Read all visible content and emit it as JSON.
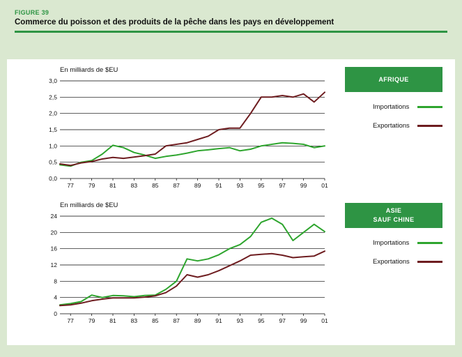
{
  "figure": {
    "label": "FIGURE 39",
    "title": "Commerce du poisson et des produits de la pêche dans les pays en développement"
  },
  "colors": {
    "background": "#dae8d0",
    "accent_green": "#2e9444",
    "panel": "#ffffff",
    "grid": "#000000",
    "import_line": "#2ea52e",
    "export_line": "#6e1d20"
  },
  "chart_data": [
    {
      "type": "line",
      "title": "AFRIQUE",
      "title_lines": [
        "AFRIQUE"
      ],
      "ylabel": "En milliards de $EU",
      "x": [
        1976,
        1977,
        1978,
        1979,
        1980,
        1981,
        1982,
        1983,
        1984,
        1985,
        1986,
        1987,
        1988,
        1989,
        1990,
        1991,
        1992,
        1993,
        1994,
        1995,
        1996,
        1997,
        1998,
        1999,
        2000,
        2001
      ],
      "x_tick_years": [
        1977,
        1979,
        1981,
        1983,
        1985,
        1987,
        1989,
        1991,
        1993,
        1995,
        1997,
        1999,
        2001
      ],
      "x_tick_labels": [
        "77",
        "79",
        "81",
        "83",
        "85",
        "87",
        "89",
        "91",
        "93",
        "95",
        "97",
        "99",
        "01"
      ],
      "ylim": [
        0,
        3
      ],
      "y_ticks": [
        0,
        0.5,
        1,
        1.5,
        2,
        2.5,
        3
      ],
      "y_tick_labels": [
        "0,0",
        "0,5",
        "1,0",
        "1,5",
        "2,0",
        "2,5",
        "3,0"
      ],
      "grid": true,
      "legend_position": "right",
      "series": [
        {
          "name": "Importations",
          "color": "#2ea52e",
          "values": [
            0.42,
            0.38,
            0.5,
            0.55,
            0.75,
            1.02,
            0.95,
            0.8,
            0.72,
            0.62,
            0.68,
            0.72,
            0.78,
            0.85,
            0.88,
            0.92,
            0.95,
            0.85,
            0.9,
            1.0,
            1.05,
            1.1,
            1.08,
            1.05,
            0.95,
            1.0
          ]
        },
        {
          "name": "Exportations",
          "color": "#6e1d20",
          "values": [
            0.45,
            0.4,
            0.48,
            0.52,
            0.6,
            0.65,
            0.62,
            0.66,
            0.7,
            0.75,
            1.0,
            1.05,
            1.1,
            1.2,
            1.3,
            1.5,
            1.55,
            1.55,
            2.0,
            2.5,
            2.5,
            2.55,
            2.5,
            2.6,
            2.35,
            2.65
          ]
        }
      ]
    },
    {
      "type": "line",
      "title": "ASIE SAUF CHINE",
      "title_lines": [
        "ASIE",
        "SAUF CHINE"
      ],
      "ylabel": "En milliards de $EU",
      "x": [
        1976,
        1977,
        1978,
        1979,
        1980,
        1981,
        1982,
        1983,
        1984,
        1985,
        1986,
        1987,
        1988,
        1989,
        1990,
        1991,
        1992,
        1993,
        1994,
        1995,
        1996,
        1997,
        1998,
        1999,
        2000,
        2001
      ],
      "x_tick_years": [
        1977,
        1979,
        1981,
        1983,
        1985,
        1987,
        1989,
        1991,
        1993,
        1995,
        1997,
        1999,
        2001
      ],
      "x_tick_labels": [
        "77",
        "79",
        "81",
        "83",
        "85",
        "87",
        "89",
        "91",
        "93",
        "95",
        "97",
        "99",
        "01"
      ],
      "ylim": [
        0,
        24
      ],
      "y_ticks": [
        0,
        4,
        8,
        12,
        16,
        20,
        24
      ],
      "y_tick_labels": [
        "0",
        "4",
        "8",
        "12",
        "16",
        "20",
        "24"
      ],
      "grid": true,
      "legend_position": "right",
      "series": [
        {
          "name": "Importations",
          "color": "#2ea52e",
          "values": [
            2.2,
            2.5,
            3.0,
            4.6,
            4.0,
            4.5,
            4.4,
            4.2,
            4.5,
            4.6,
            6.0,
            8.0,
            13.5,
            13.0,
            13.5,
            14.5,
            16.0,
            17.0,
            19.0,
            22.5,
            23.5,
            22.0,
            18.0,
            20.0,
            22.0,
            20.2
          ]
        },
        {
          "name": "Exportations",
          "color": "#6e1d20",
          "values": [
            2.0,
            2.2,
            2.6,
            3.2,
            3.6,
            3.9,
            3.9,
            3.9,
            4.1,
            4.4,
            5.2,
            6.8,
            9.6,
            9.0,
            9.6,
            10.6,
            11.8,
            13.0,
            14.4,
            14.6,
            14.8,
            14.4,
            13.8,
            14.0,
            14.2,
            15.4
          ]
        }
      ]
    }
  ]
}
